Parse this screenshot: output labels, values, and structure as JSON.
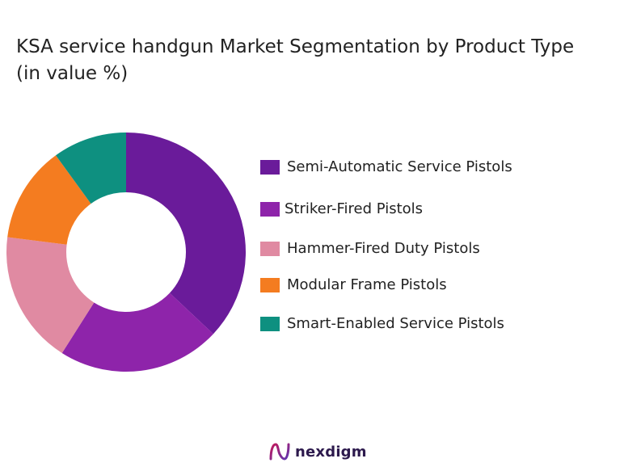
{
  "chart_data": {
    "type": "pie",
    "title": " KSA service handgun Market Segmentation by Product Type (in value %)",
    "categories": [
      "Semi-Automatic Service Pistols",
      "Striker-Fired Pistols",
      "Hammer-Fired Duty Pistols",
      "Modular Frame Pistols",
      "Smart-Enabled Service Pistols"
    ],
    "values": [
      37,
      22,
      18,
      13,
      10
    ],
    "colors": [
      "#6a1b9a",
      "#8e24aa",
      "#e08aa2",
      "#f47c20",
      "#0e9080"
    ],
    "donut": true,
    "legend_position": "right"
  },
  "brand": {
    "name": "nexdigm"
  }
}
